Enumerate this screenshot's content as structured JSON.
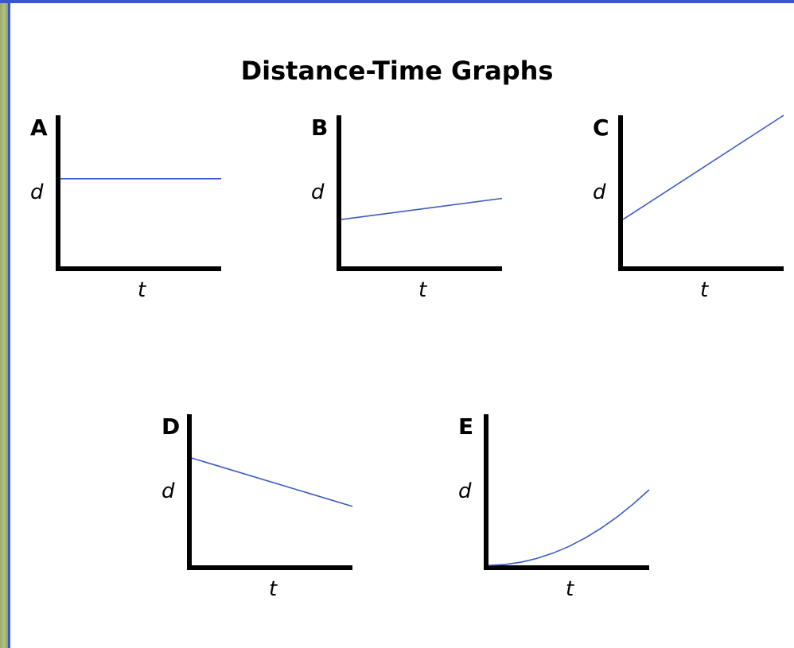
{
  "title": "Distance-Time Graphs",
  "colors": {
    "line": "#3b5bc6",
    "axis": "#000000",
    "frame_blue": "#3b57c4",
    "frame_green": "#a5b57a"
  },
  "chart_data": [
    {
      "type": "line",
      "label": "A",
      "xlabel": "t",
      "ylabel": "d",
      "series": [
        {
          "x": [
            0,
            1
          ],
          "y": [
            0.58,
            0.58
          ]
        }
      ]
    },
    {
      "type": "line",
      "label": "B",
      "xlabel": "t",
      "ylabel": "d",
      "series": [
        {
          "x": [
            0,
            1
          ],
          "y": [
            0.31,
            0.45
          ]
        }
      ]
    },
    {
      "type": "line",
      "label": "C",
      "xlabel": "t",
      "ylabel": "d",
      "series": [
        {
          "x": [
            0,
            1
          ],
          "y": [
            0.31,
            1.0
          ]
        }
      ]
    },
    {
      "type": "line",
      "label": "D",
      "xlabel": "t",
      "ylabel": "d",
      "series": [
        {
          "x": [
            0,
            1
          ],
          "y": [
            0.71,
            0.39
          ]
        }
      ]
    },
    {
      "type": "line",
      "label": "E",
      "xlabel": "t",
      "ylabel": "d",
      "series": [
        {
          "x": [
            0,
            0.1,
            0.2,
            0.3,
            0.4,
            0.5,
            0.6,
            0.7,
            0.8,
            0.9,
            1.0
          ],
          "y": [
            0,
            0.005,
            0.02,
            0.045,
            0.08,
            0.125,
            0.18,
            0.245,
            0.32,
            0.405,
            0.5
          ]
        }
      ]
    }
  ]
}
